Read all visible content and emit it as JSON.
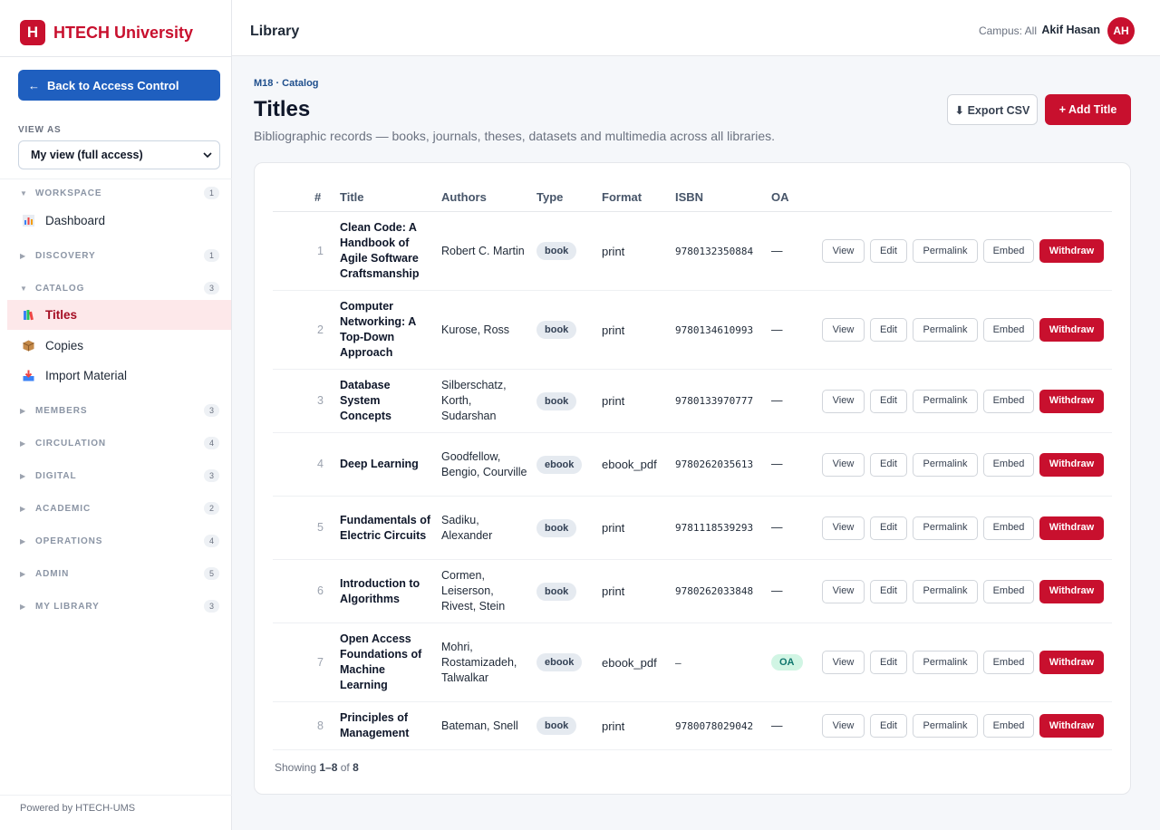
{
  "brand": {
    "logo_letter": "H",
    "name": "HTECH University",
    "color": "#c8102e"
  },
  "back_button": {
    "arrow": "←",
    "label": "Back to Access Control"
  },
  "view_as": {
    "label": "VIEW AS",
    "selected": "My view (full access)"
  },
  "sidebar": {
    "groups": [
      {
        "name": "WORKSPACE",
        "count": "1",
        "expanded": true,
        "items": [
          {
            "label": "Dashboard",
            "icon": "chart-icon"
          }
        ]
      },
      {
        "name": "DISCOVERY",
        "count": "1",
        "expanded": false
      },
      {
        "name": "CATALOG",
        "count": "3",
        "expanded": true,
        "items": [
          {
            "label": "Titles",
            "icon": "books-icon",
            "active": true
          },
          {
            "label": "Copies",
            "icon": "package-icon"
          },
          {
            "label": "Import Material",
            "icon": "inbox-tray-icon"
          }
        ]
      },
      {
        "name": "MEMBERS",
        "count": "3",
        "expanded": false
      },
      {
        "name": "CIRCULATION",
        "count": "4",
        "expanded": false
      },
      {
        "name": "DIGITAL",
        "count": "3",
        "expanded": false
      },
      {
        "name": "ACADEMIC",
        "count": "2",
        "expanded": false
      },
      {
        "name": "OPERATIONS",
        "count": "4",
        "expanded": false
      },
      {
        "name": "ADMIN",
        "count": "5",
        "expanded": false
      },
      {
        "name": "MY LIBRARY",
        "count": "3",
        "expanded": false
      }
    ]
  },
  "footer": {
    "powered": "Powered by HTECH-UMS"
  },
  "topbar": {
    "title": "Library",
    "campus": "Campus: All",
    "user_name": "Akif Hasan",
    "avatar_initials": "AH"
  },
  "page": {
    "breadcrumb": "M18 · Catalog",
    "title": "Titles",
    "subtitle": "Bibliographic records — books, journals, theses, datasets and multimedia across all libraries.",
    "export_label": "⬇ Export CSV",
    "add_label": "+ Add Title"
  },
  "table": {
    "headers": {
      "num": "#",
      "title": "Title",
      "authors": "Authors",
      "type": "Type",
      "format": "Format",
      "isbn": "ISBN",
      "oa": "OA"
    },
    "actions": {
      "view": "View",
      "edit": "Edit",
      "permalink": "Permalink",
      "embed": "Embed",
      "withdraw": "Withdraw"
    },
    "rows": [
      {
        "num": "1",
        "title": "Clean Code: A Handbook of Agile Software Craftsmanship",
        "authors": "Robert C. Martin",
        "type": "book",
        "format": "print",
        "isbn": "9780132350884",
        "oa": "—"
      },
      {
        "num": "2",
        "title": "Computer Networking: A Top-Down Approach",
        "authors": "Kurose, Ross",
        "type": "book",
        "format": "print",
        "isbn": "9780134610993",
        "oa": "—"
      },
      {
        "num": "3",
        "title": "Database System Concepts",
        "authors": "Silberschatz, Korth, Sudarshan",
        "type": "book",
        "format": "print",
        "isbn": "9780133970777",
        "oa": "—"
      },
      {
        "num": "4",
        "title": "Deep Learning",
        "authors": "Goodfellow, Bengio, Courville",
        "type": "ebook",
        "format": "ebook_pdf",
        "isbn": "9780262035613",
        "oa": "—"
      },
      {
        "num": "5",
        "title": "Fundamentals of Electric Circuits",
        "authors": "Sadiku, Alexander",
        "type": "book",
        "format": "print",
        "isbn": "9781118539293",
        "oa": "—"
      },
      {
        "num": "6",
        "title": "Introduction to Algorithms",
        "authors": "Cormen, Leiserson, Rivest, Stein",
        "type": "book",
        "format": "print",
        "isbn": "9780262033848",
        "oa": "—"
      },
      {
        "num": "7",
        "title": "Open Access Foundations of Machine Learning",
        "authors": "Mohri, Rostamizadeh, Talwalkar",
        "type": "ebook",
        "format": "ebook_pdf",
        "isbn": "–",
        "oa": "OA"
      },
      {
        "num": "8",
        "title": "Principles of Management",
        "authors": "Bateman, Snell",
        "type": "book",
        "format": "print",
        "isbn": "9780078029042",
        "oa": "—"
      }
    ]
  },
  "pagination": {
    "prefix": "Showing ",
    "range": "1–8",
    "of": " of ",
    "total": "8"
  }
}
